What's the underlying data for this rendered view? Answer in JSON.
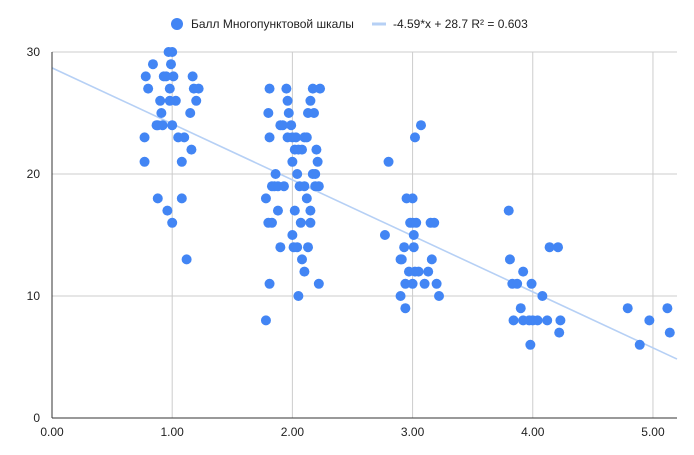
{
  "chart_data": {
    "type": "scatter",
    "title": "",
    "xlabel": "",
    "ylabel": "",
    "xlim": [
      0,
      5.2
    ],
    "ylim": [
      0,
      30
    ],
    "xticks": [
      "0.00",
      "1.00",
      "2.00",
      "3.00",
      "4.00",
      "5.00"
    ],
    "yticks": [
      "0",
      "10",
      "20",
      "30"
    ],
    "grid": true,
    "legend_position": "top",
    "series": [
      {
        "name": "Балл Многопунктовой шкалы",
        "color": "#4285f4",
        "points": [
          [
            0.78,
            28
          ],
          [
            0.8,
            27
          ],
          [
            0.84,
            29
          ],
          [
            0.88,
            24
          ],
          [
            0.9,
            26
          ],
          [
            0.91,
            25
          ],
          [
            0.93,
            28
          ],
          [
            0.95,
            28
          ],
          [
            0.97,
            30
          ],
          [
            0.98,
            27
          ],
          [
            1.0,
            30
          ],
          [
            0.99,
            29
          ],
          [
            1.01,
            28
          ],
          [
            1.03,
            26
          ],
          [
            0.98,
            26
          ],
          [
            1.0,
            24
          ],
          [
            1.05,
            23
          ],
          [
            1.1,
            23
          ],
          [
            1.15,
            25
          ],
          [
            1.18,
            27
          ],
          [
            1.2,
            26
          ],
          [
            1.22,
            27
          ],
          [
            1.17,
            28
          ],
          [
            0.77,
            23
          ],
          [
            0.77,
            21
          ],
          [
            0.87,
            24
          ],
          [
            0.92,
            24
          ],
          [
            1.08,
            21
          ],
          [
            1.16,
            22
          ],
          [
            0.88,
            18
          ],
          [
            0.96,
            17
          ],
          [
            1.0,
            16
          ],
          [
            1.08,
            18
          ],
          [
            1.12,
            13
          ],
          [
            1.78,
            18
          ],
          [
            1.8,
            25
          ],
          [
            1.81,
            27
          ],
          [
            1.81,
            23
          ],
          [
            1.83,
            19
          ],
          [
            1.85,
            19
          ],
          [
            1.86,
            20
          ],
          [
            1.88,
            19
          ],
          [
            1.9,
            24
          ],
          [
            1.92,
            24
          ],
          [
            1.95,
            27
          ],
          [
            1.96,
            26
          ],
          [
            1.97,
            25
          ],
          [
            1.99,
            24
          ],
          [
            1.96,
            23
          ],
          [
            2.0,
            23
          ],
          [
            2.02,
            22
          ],
          [
            2.03,
            23
          ],
          [
            2.05,
            22
          ],
          [
            2.08,
            22
          ],
          [
            2.1,
            23
          ],
          [
            2.12,
            23
          ],
          [
            2.13,
            25
          ],
          [
            2.15,
            26
          ],
          [
            2.17,
            27
          ],
          [
            2.18,
            25
          ],
          [
            2.2,
            22
          ],
          [
            2.19,
            20
          ],
          [
            2.21,
            21
          ],
          [
            2.22,
            19
          ],
          [
            2.23,
            27
          ],
          [
            1.8,
            16
          ],
          [
            1.83,
            16
          ],
          [
            1.88,
            17
          ],
          [
            1.93,
            19
          ],
          [
            2.0,
            21
          ],
          [
            2.02,
            17
          ],
          [
            2.04,
            20
          ],
          [
            2.06,
            19
          ],
          [
            2.07,
            16
          ],
          [
            2.1,
            19
          ],
          [
            2.12,
            18
          ],
          [
            2.15,
            17
          ],
          [
            2.17,
            20
          ],
          [
            2.19,
            19
          ],
          [
            1.9,
            14
          ],
          [
            2.0,
            15
          ],
          [
            2.01,
            14
          ],
          [
            2.04,
            14
          ],
          [
            2.08,
            13
          ],
          [
            2.1,
            12
          ],
          [
            2.13,
            14
          ],
          [
            2.15,
            16
          ],
          [
            1.81,
            11
          ],
          [
            1.78,
            8
          ],
          [
            2.05,
            10
          ],
          [
            2.22,
            11
          ],
          [
            2.77,
            15
          ],
          [
            2.8,
            21
          ],
          [
            2.9,
            13
          ],
          [
            2.91,
            13
          ],
          [
            2.93,
            14
          ],
          [
            2.94,
            11
          ],
          [
            2.95,
            18
          ],
          [
            2.97,
            12
          ],
          [
            2.98,
            16
          ],
          [
            3.0,
            16
          ],
          [
            3.0,
            18
          ],
          [
            3.01,
            15
          ],
          [
            3.01,
            14
          ],
          [
            3.02,
            12
          ],
          [
            3.03,
            16
          ],
          [
            3.05,
            12
          ],
          [
            3.07,
            24
          ],
          [
            3.1,
            11
          ],
          [
            3.13,
            12
          ],
          [
            3.15,
            16
          ],
          [
            3.16,
            13
          ],
          [
            3.18,
            16
          ],
          [
            3.2,
            11
          ],
          [
            3.22,
            10
          ],
          [
            2.9,
            10
          ],
          [
            2.94,
            9
          ],
          [
            3.0,
            11
          ],
          [
            3.02,
            23
          ],
          [
            3.8,
            17
          ],
          [
            3.81,
            13
          ],
          [
            3.83,
            11
          ],
          [
            3.84,
            8
          ],
          [
            3.87,
            11
          ],
          [
            3.9,
            9
          ],
          [
            3.92,
            12
          ],
          [
            3.92,
            8
          ],
          [
            3.97,
            8
          ],
          [
            3.98,
            6
          ],
          [
            3.99,
            11
          ],
          [
            4.0,
            8
          ],
          [
            4.04,
            8
          ],
          [
            4.08,
            10
          ],
          [
            4.12,
            8
          ],
          [
            4.14,
            14
          ],
          [
            4.21,
            14
          ],
          [
            4.22,
            7
          ],
          [
            4.23,
            8
          ],
          [
            4.79,
            9
          ],
          [
            4.89,
            6
          ],
          [
            4.97,
            8
          ],
          [
            5.12,
            9
          ],
          [
            5.14,
            7
          ]
        ]
      }
    ],
    "trendline": {
      "label": "-4.59*x + 28.7 R² = 0.603",
      "slope": -4.59,
      "intercept": 28.7,
      "r_squared": 0.603,
      "color": "#b6d0f5"
    }
  }
}
